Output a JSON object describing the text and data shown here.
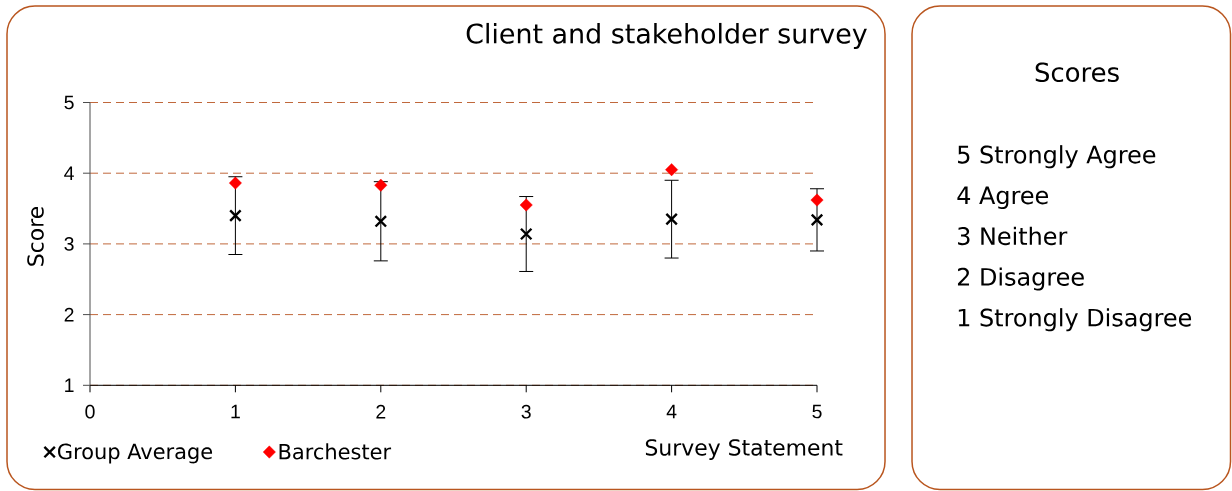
{
  "chart_data": [
    {
      "type": "scatter",
      "title": "Client and stakeholder survey",
      "xlabel": "Survey Statement",
      "ylabel": "Score",
      "x": [
        1,
        2,
        3,
        4,
        5
      ],
      "series": [
        {
          "name": "Group Average",
          "color": "#000000",
          "marker": "cross",
          "values": [
            3.4,
            3.32,
            3.14,
            3.35,
            3.34
          ],
          "errors": [
            0.55,
            0.56,
            0.53,
            0.55,
            0.44
          ]
        },
        {
          "name": "Barchester",
          "color": "#ff0000",
          "marker": "diamond",
          "values": [
            3.86,
            3.83,
            3.55,
            4.05,
            3.62
          ]
        }
      ],
      "xlim": [
        0,
        5
      ],
      "xticks": [
        0,
        1,
        2,
        3,
        4,
        5
      ],
      "ylim": [
        1,
        5
      ],
      "yticks": [
        1,
        2,
        3,
        4,
        5
      ],
      "grid": "y",
      "legend": "bottom"
    },
    {
      "type": "other",
      "title": "Scores",
      "annotations": [
        "5 Strongly Agree",
        "4 Agree",
        "3 Neither",
        "2 Disagree",
        "1 Strongly Disagree"
      ]
    }
  ]
}
